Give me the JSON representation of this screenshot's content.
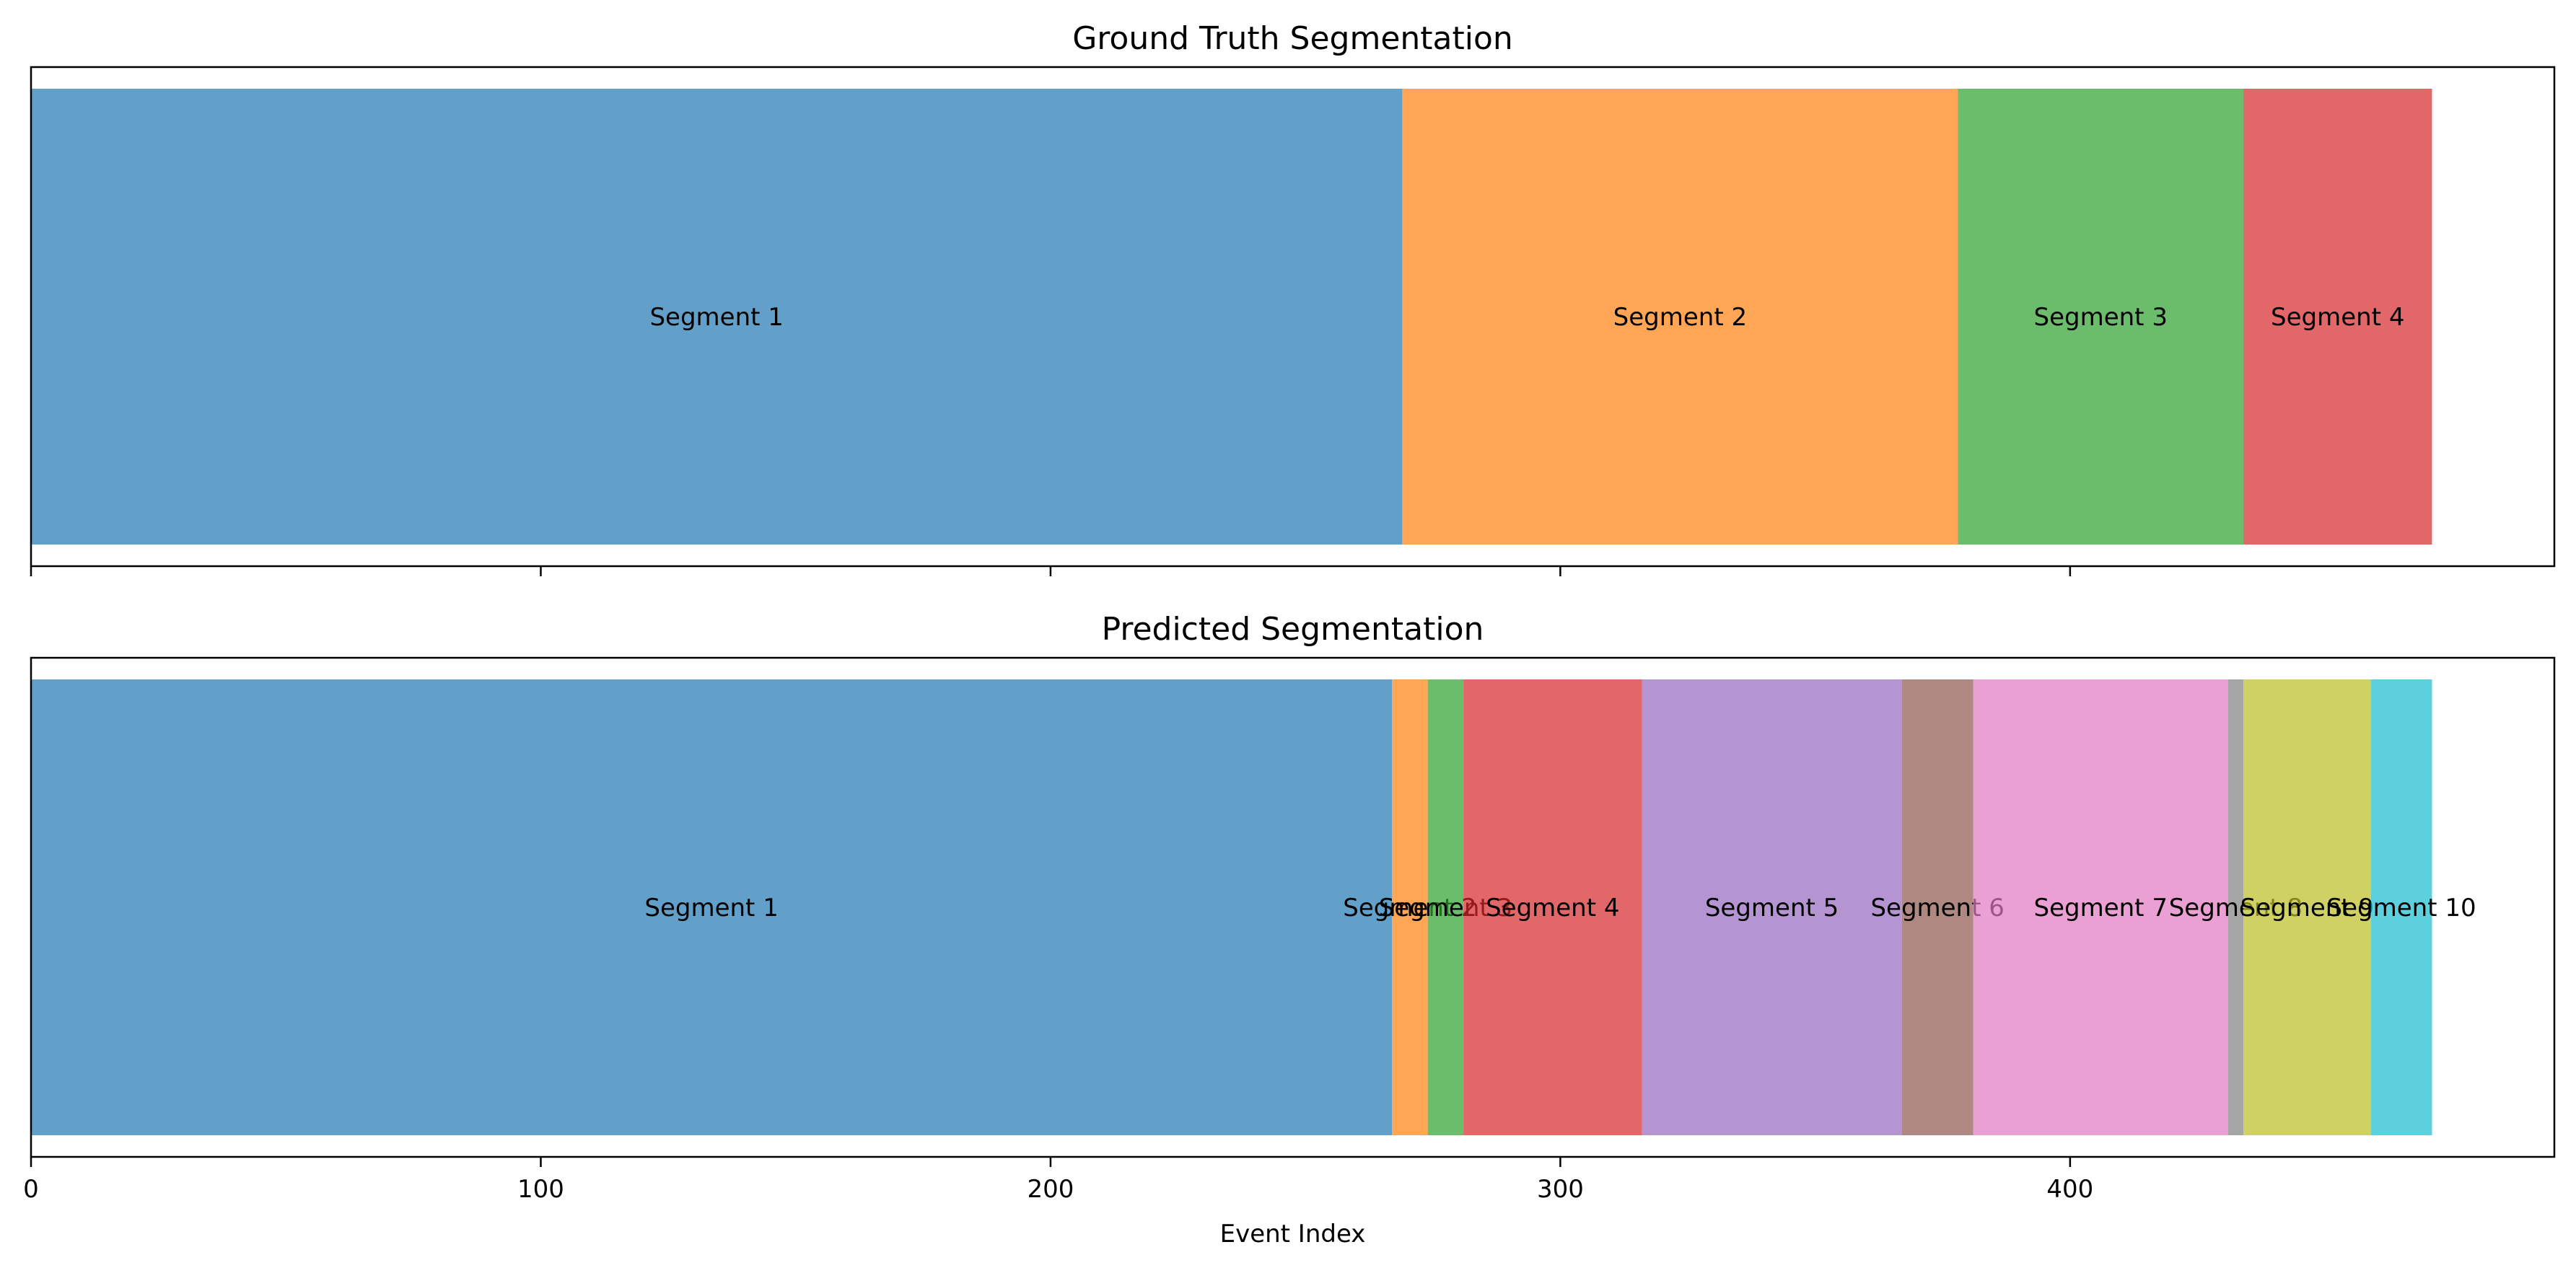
{
  "chart_data": [
    {
      "type": "bar",
      "orientation": "horizontal-stacked",
      "title": "Ground Truth Segmentation",
      "xlabel": "",
      "ylabel": "",
      "xlim": [
        0,
        495
      ],
      "grid": false,
      "segments": [
        {
          "label": "Segment 1",
          "start": 0,
          "end": 269,
          "color": "#1f77b4"
        },
        {
          "label": "Segment 2",
          "start": 269,
          "end": 378,
          "color": "#ff7f0e"
        },
        {
          "label": "Segment 3",
          "start": 378,
          "end": 434,
          "color": "#2ca02c"
        },
        {
          "label": "Segment 4",
          "start": 434,
          "end": 471,
          "color": "#d62728"
        }
      ]
    },
    {
      "type": "bar",
      "orientation": "horizontal-stacked",
      "title": "Predicted Segmentation",
      "xlabel": "Event Index",
      "ylabel": "",
      "xlim": [
        0,
        495
      ],
      "xticks": [
        "0",
        "100",
        "200",
        "300",
        "400"
      ],
      "grid": false,
      "segments": [
        {
          "label": "Segment 1",
          "start": 0,
          "end": 267,
          "color": "#1f77b4"
        },
        {
          "label": "Segment 2",
          "start": 267,
          "end": 274,
          "color": "#ff7f0e"
        },
        {
          "label": "Segment 3",
          "start": 274,
          "end": 281,
          "color": "#2ca02c"
        },
        {
          "label": "Segment 4",
          "start": 281,
          "end": 316,
          "color": "#d62728"
        },
        {
          "label": "Segment 5",
          "start": 316,
          "end": 367,
          "color": "#9467bd"
        },
        {
          "label": "Segment 6",
          "start": 367,
          "end": 381,
          "color": "#8c564b"
        },
        {
          "label": "Segment 7",
          "start": 381,
          "end": 431,
          "color": "#e377c2"
        },
        {
          "label": "Segment 8",
          "start": 431,
          "end": 434,
          "color": "#7f7f7f"
        },
        {
          "label": "Segment 9",
          "start": 434,
          "end": 459,
          "color": "#bcbd22"
        },
        {
          "label": "Segment 10",
          "start": 459,
          "end": 471,
          "color": "#17becf"
        }
      ]
    }
  ]
}
